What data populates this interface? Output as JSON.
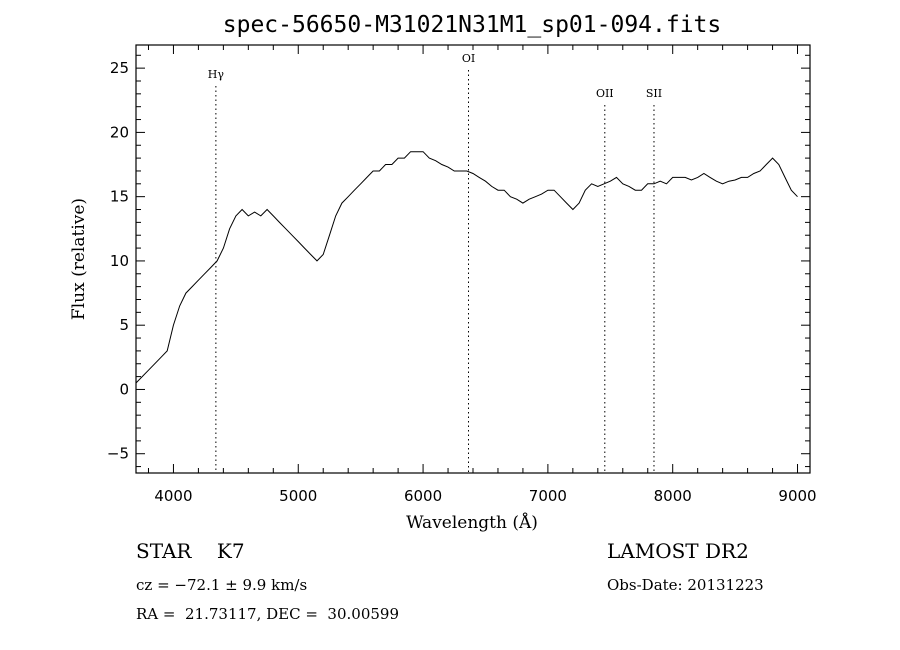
{
  "chart_data": {
    "type": "line",
    "title": "spec-56650-M31021N31M1_sp01-094.fits",
    "xlabel": "Wavelength (Å)",
    "ylabel": "Flux (relative)",
    "xlim": [
      3700,
      9100
    ],
    "ylim": [
      -6.5,
      26.8
    ],
    "xticks": [
      "4000",
      "5000",
      "6000",
      "7000",
      "8000",
      "9000"
    ],
    "yticks": [
      "25",
      "20",
      "15",
      "10",
      "5",
      "0",
      "−5"
    ],
    "line_color": "#000000",
    "grid": false,
    "series": [
      {
        "x": [
          3700,
          3750,
          3800,
          3850,
          3900,
          3950,
          4000,
          4050,
          4100,
          4150,
          4200,
          4250,
          4300,
          4350,
          4400,
          4450,
          4500,
          4550,
          4600,
          4650,
          4700,
          4750,
          4800,
          4850,
          4900,
          4950,
          5000,
          5050,
          5100,
          5150,
          5200,
          5250,
          5300,
          5350,
          5400,
          5450,
          5500,
          5550,
          5600,
          5650,
          5700,
          5750,
          5800,
          5850,
          5900,
          5950,
          6000,
          6050,
          6100,
          6150,
          6200,
          6250,
          6300,
          6350,
          6400,
          6450,
          6500,
          6550,
          6600,
          6650,
          6700,
          6750,
          6800,
          6850,
          6900,
          6950,
          7000,
          7050,
          7100,
          7150,
          7200,
          7250,
          7300,
          7350,
          7400,
          7450,
          7500,
          7550,
          7600,
          7650,
          7700,
          7750,
          7800,
          7850,
          7900,
          7950,
          8000,
          8050,
          8100,
          8150,
          8200,
          8250,
          8300,
          8350,
          8400,
          8450,
          8500,
          8550,
          8600,
          8650,
          8700,
          8750,
          8800,
          8850,
          8900,
          8950,
          9000
        ],
        "y": [
          0.5,
          1.0,
          1.5,
          2.0,
          2.5,
          3.0,
          5.0,
          6.5,
          7.5,
          8.0,
          8.5,
          9.0,
          9.5,
          10.0,
          11.0,
          12.5,
          13.5,
          14.0,
          13.5,
          13.8,
          13.5,
          14.0,
          13.5,
          13.0,
          12.5,
          12.0,
          11.5,
          11.0,
          10.5,
          10.0,
          10.5,
          12.0,
          13.5,
          14.5,
          15.0,
          15.5,
          16.0,
          16.5,
          17.0,
          17.0,
          17.5,
          17.5,
          18.0,
          18.0,
          18.5,
          18.5,
          18.5,
          18.0,
          17.8,
          17.5,
          17.3,
          17.0,
          17.0,
          17.0,
          16.8,
          16.5,
          16.2,
          15.8,
          15.5,
          15.5,
          15.0,
          14.8,
          14.5,
          14.8,
          15.0,
          15.2,
          15.5,
          15.5,
          15.0,
          14.5,
          14.0,
          14.5,
          15.5,
          16.0,
          15.8,
          16.0,
          16.2,
          16.5,
          16.0,
          15.8,
          15.5,
          15.5,
          16.0,
          16.0,
          16.2,
          16.0,
          16.5,
          16.5,
          16.5,
          16.3,
          16.5,
          16.8,
          16.5,
          16.2,
          16.0,
          16.2,
          16.3,
          16.5,
          16.5,
          16.8,
          17.0,
          17.5,
          18.0,
          17.5,
          16.5,
          15.5,
          15.0
        ]
      }
    ],
    "annotations": [
      {
        "label": "Hγ",
        "x": 4340
      },
      {
        "label": "OI",
        "x": 6364
      },
      {
        "label": "OII",
        "x": 7456
      },
      {
        "label": "SII",
        "x": 7850
      }
    ]
  },
  "info": {
    "class_text": "STAR    K7",
    "survey": "LAMOST DR2",
    "cz_text": "cz = −72.1 ± 9.9 km/s",
    "obsdate_text": "Obs-Date: 20131223",
    "radec_text": "RA =  21.73117, DEC =  30.00599"
  }
}
